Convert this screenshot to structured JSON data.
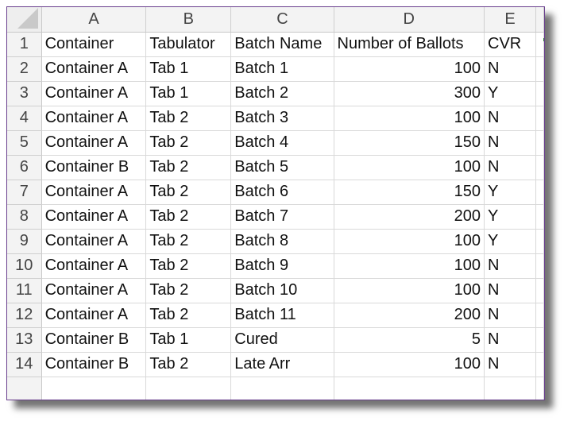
{
  "sheet": {
    "columns": [
      "A",
      "B",
      "C",
      "D",
      "E"
    ],
    "rows": [
      {
        "row": "1",
        "cells": [
          "Container",
          "Tabulator",
          "Batch Name",
          "Number of Ballots",
          "CVR"
        ]
      },
      {
        "row": "2",
        "cells": [
          "Container A",
          "Tab 1",
          "Batch 1",
          "100",
          "N"
        ]
      },
      {
        "row": "3",
        "cells": [
          "Container A",
          "Tab 1",
          "Batch 2",
          "300",
          "Y"
        ]
      },
      {
        "row": "4",
        "cells": [
          "Container A",
          "Tab 2",
          "Batch 3",
          "100",
          "N"
        ]
      },
      {
        "row": "5",
        "cells": [
          "Container A",
          "Tab 2",
          "Batch 4",
          "150",
          "N"
        ]
      },
      {
        "row": "6",
        "cells": [
          "Container B",
          "Tab 2",
          "Batch 5",
          "100",
          "N"
        ]
      },
      {
        "row": "7",
        "cells": [
          "Container A",
          "Tab 2",
          "Batch 6",
          "150",
          "Y"
        ]
      },
      {
        "row": "8",
        "cells": [
          "Container A",
          "Tab 2",
          "Batch 7",
          "200",
          "Y"
        ]
      },
      {
        "row": "9",
        "cells": [
          "Container A",
          "Tab 2",
          "Batch 8",
          "100",
          "Y"
        ]
      },
      {
        "row": "10",
        "cells": [
          "Container A",
          "Tab 2",
          "Batch 9",
          "100",
          "N"
        ]
      },
      {
        "row": "11",
        "cells": [
          "Container A",
          "Tab 2",
          "Batch 10",
          "100",
          "N"
        ]
      },
      {
        "row": "12",
        "cells": [
          "Container A",
          "Tab 2",
          "Batch 11",
          "200",
          "N"
        ]
      },
      {
        "row": "13",
        "cells": [
          "Container B",
          "Tab 1",
          "Cured",
          "5",
          "N"
        ]
      },
      {
        "row": "14",
        "cells": [
          "Container B",
          "Tab 2",
          "Late Arr",
          "100",
          "N"
        ]
      }
    ]
  },
  "colors": {
    "frame_border": "#6a3f8e",
    "header_bg": "#f3f3f3",
    "gridline": "#d9d9d9"
  }
}
